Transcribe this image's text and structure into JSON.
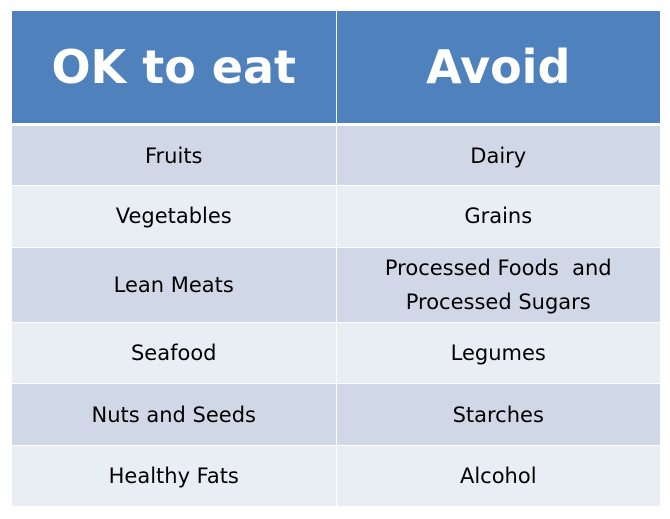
{
  "table": {
    "headers": {
      "ok": "OK to eat",
      "avoid": "Avoid"
    },
    "rows": [
      {
        "ok": "Fruits",
        "avoid": "Dairy"
      },
      {
        "ok": "Vegetables",
        "avoid": "Grains"
      },
      {
        "ok": "Lean Meats",
        "avoid_line1": "Processed Foods  and",
        "avoid_line2": "Processed Sugars"
      },
      {
        "ok": "Seafood",
        "avoid": "Legumes"
      },
      {
        "ok": "Nuts and Seeds",
        "avoid": "Starches"
      },
      {
        "ok": "Healthy Fats",
        "avoid": "Alcohol"
      }
    ]
  },
  "colors": {
    "header_bg": "#4f81bd",
    "header_text": "#ffffff",
    "row_dark": "#d0d8e8",
    "row_light": "#e9edf4"
  }
}
